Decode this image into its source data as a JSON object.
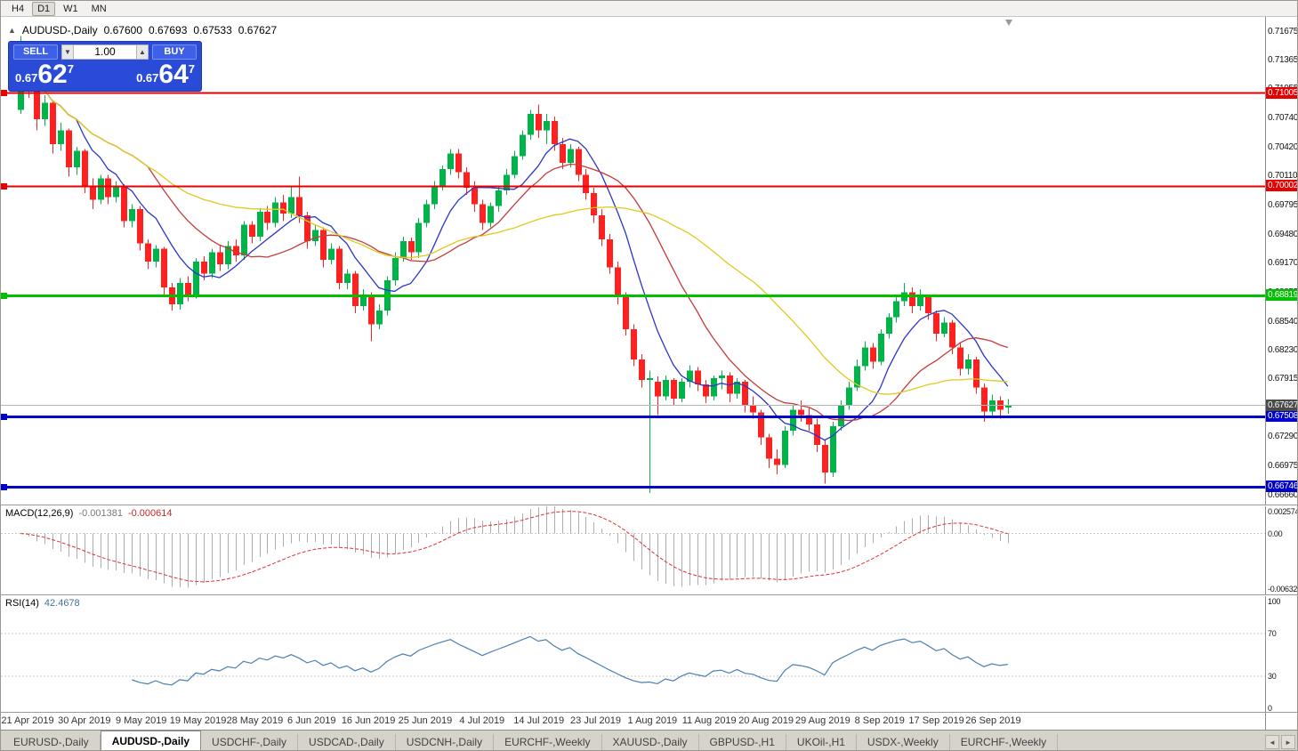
{
  "toolbar": {
    "timeframes": [
      {
        "label": "H4",
        "active": false
      },
      {
        "label": "D1",
        "active": true
      },
      {
        "label": "W1",
        "active": false
      },
      {
        "label": "MN",
        "active": false
      }
    ]
  },
  "chart_header": {
    "collapse_icon": "▲",
    "symbol": "AUDUSD-,Daily",
    "open": "0.67600",
    "high": "0.67693",
    "low": "0.67533",
    "close": "0.67627"
  },
  "trade_panel": {
    "sell_label": "SELL",
    "buy_label": "BUY",
    "volume": "1.00",
    "spin_down_icon": "▼",
    "spin_up_icon": "▲",
    "sell_price": {
      "prefix": "0.67",
      "big": "62",
      "sup": "7"
    },
    "buy_price": {
      "prefix": "0.67",
      "big": "64",
      "sup": "7"
    }
  },
  "price_axis": {
    "ticks": [
      "0.71675",
      "0.71365",
      "0.71055",
      "0.70740",
      "0.70420",
      "0.70110",
      "0.69795",
      "0.69480",
      "0.69170",
      "0.68855",
      "0.68540",
      "0.68230",
      "0.67915",
      "0.67600",
      "0.67290",
      "0.66975",
      "0.66660"
    ]
  },
  "levels": [
    {
      "price": 0.71005,
      "label": "0.71005",
      "color": "#e60000",
      "thickness": 2
    },
    {
      "price": 0.70002,
      "label": "0.70002",
      "color": "#e60000",
      "thickness": 2
    },
    {
      "price": 0.68819,
      "label": "0.68819",
      "color": "#00c000",
      "thickness": 3
    },
    {
      "price": 0.67508,
      "label": "0.67508",
      "color": "#0000cc",
      "thickness": 3
    },
    {
      "price": 0.66746,
      "label": "0.66746",
      "color": "#0000cc",
      "thickness": 3
    }
  ],
  "current_price": {
    "value": 0.67627,
    "label": "0.67627",
    "line_color": "#b5b5b5",
    "label_bg": "#4a4a4a"
  },
  "chart_data": {
    "type": "candlestick",
    "symbol": "AUDUSD",
    "timeframe": "Daily",
    "y_axis": {
      "top": 0.7175,
      "bottom": 0.6663
    },
    "bull_color": "#00b44a",
    "bear_color": "#ff2020",
    "x_labels": [
      "21 Apr 2019",
      "30 Apr 2019",
      "9 May 2019",
      "19 May 2019",
      "28 May 2019",
      "6 Jun 2019",
      "16 Jun 2019",
      "25 Jun 2019",
      "4 Jul 2019",
      "14 Jul 2019",
      "23 Jul 2019",
      "1 Aug 2019",
      "11 Aug 2019",
      "20 Aug 2019",
      "29 Aug 2019",
      "8 Sep 2019",
      "17 Sep 2019",
      "26 Sep 2019"
    ],
    "moving_averages": [
      {
        "period": 8,
        "color": "#2b35c8"
      },
      {
        "period": 17,
        "color": "#c43b3b"
      },
      {
        "period": 34,
        "color": "#ddca1d"
      }
    ],
    "candles": [
      [
        0.7082,
        0.7162,
        0.7078,
        0.7148
      ],
      [
        0.7148,
        0.7152,
        0.7095,
        0.7105
      ],
      [
        0.7105,
        0.711,
        0.706,
        0.7072
      ],
      [
        0.7072,
        0.7098,
        0.7065,
        0.709
      ],
      [
        0.709,
        0.7092,
        0.7035,
        0.7045
      ],
      [
        0.7045,
        0.7068,
        0.7038,
        0.706
      ],
      [
        0.706,
        0.7062,
        0.701,
        0.702
      ],
      [
        0.702,
        0.7042,
        0.7012,
        0.7038
      ],
      [
        0.7038,
        0.704,
        0.6992,
        0.7
      ],
      [
        0.7,
        0.7008,
        0.6975,
        0.6985
      ],
      [
        0.6985,
        0.7012,
        0.698,
        0.7008
      ],
      [
        0.7008,
        0.7012,
        0.698,
        0.6988
      ],
      [
        0.6988,
        0.7005,
        0.6982,
        0.7
      ],
      [
        0.7,
        0.7002,
        0.6955,
        0.6962
      ],
      [
        0.6962,
        0.698,
        0.6955,
        0.6975
      ],
      [
        0.6975,
        0.6978,
        0.693,
        0.6938
      ],
      [
        0.6938,
        0.6942,
        0.691,
        0.6918
      ],
      [
        0.6918,
        0.6936,
        0.6912,
        0.6932
      ],
      [
        0.6932,
        0.6934,
        0.6882,
        0.689
      ],
      [
        0.689,
        0.6895,
        0.6865,
        0.6872
      ],
      [
        0.6872,
        0.69,
        0.6866,
        0.6895
      ],
      [
        0.6895,
        0.6902,
        0.6875,
        0.6882
      ],
      [
        0.6882,
        0.6922,
        0.6878,
        0.6918
      ],
      [
        0.6918,
        0.6924,
        0.6898,
        0.6905
      ],
      [
        0.6905,
        0.6932,
        0.69,
        0.6928
      ],
      [
        0.6928,
        0.6935,
        0.6908,
        0.6915
      ],
      [
        0.6915,
        0.694,
        0.691,
        0.6935
      ],
      [
        0.6935,
        0.6942,
        0.6918,
        0.6925
      ],
      [
        0.6925,
        0.6962,
        0.692,
        0.6958
      ],
      [
        0.6958,
        0.6962,
        0.6938,
        0.6945
      ],
      [
        0.6945,
        0.6976,
        0.694,
        0.6972
      ],
      [
        0.6972,
        0.6978,
        0.6952,
        0.696
      ],
      [
        0.696,
        0.6988,
        0.6955,
        0.6982
      ],
      [
        0.6982,
        0.699,
        0.6962,
        0.697
      ],
      [
        0.697,
        0.7,
        0.6965,
        0.6988
      ],
      [
        0.6988,
        0.701,
        0.696,
        0.6968
      ],
      [
        0.6968,
        0.6972,
        0.6932,
        0.694
      ],
      [
        0.694,
        0.6958,
        0.6935,
        0.6952
      ],
      [
        0.6952,
        0.6955,
        0.6912,
        0.692
      ],
      [
        0.692,
        0.6938,
        0.6915,
        0.6932
      ],
      [
        0.6932,
        0.6935,
        0.6888,
        0.6895
      ],
      [
        0.6895,
        0.691,
        0.6888,
        0.6905
      ],
      [
        0.6905,
        0.6908,
        0.6862,
        0.687
      ],
      [
        0.687,
        0.6888,
        0.6865,
        0.6882
      ],
      [
        0.6882,
        0.6885,
        0.6832,
        0.685
      ],
      [
        0.685,
        0.6872,
        0.6845,
        0.6865
      ],
      [
        0.6865,
        0.6902,
        0.686,
        0.6898
      ],
      [
        0.6898,
        0.6928,
        0.6892,
        0.6922
      ],
      [
        0.6922,
        0.6945,
        0.6918,
        0.694
      ],
      [
        0.694,
        0.6944,
        0.692,
        0.6928
      ],
      [
        0.6928,
        0.6965,
        0.6922,
        0.696
      ],
      [
        0.696,
        0.6985,
        0.6955,
        0.698
      ],
      [
        0.698,
        0.7005,
        0.6975,
        0.7
      ],
      [
        0.7,
        0.7022,
        0.6995,
        0.7018
      ],
      [
        0.7018,
        0.704,
        0.7012,
        0.7035
      ],
      [
        0.7035,
        0.704,
        0.7008,
        0.7015
      ],
      [
        0.7015,
        0.702,
        0.699,
        0.6998
      ],
      [
        0.6998,
        0.7005,
        0.6972,
        0.698
      ],
      [
        0.698,
        0.6985,
        0.6952,
        0.696
      ],
      [
        0.696,
        0.6982,
        0.6955,
        0.6978
      ],
      [
        0.6978,
        0.7,
        0.6972,
        0.6995
      ],
      [
        0.6995,
        0.7018,
        0.699,
        0.7012
      ],
      [
        0.7012,
        0.7038,
        0.7008,
        0.7032
      ],
      [
        0.7032,
        0.706,
        0.7028,
        0.7055
      ],
      [
        0.7055,
        0.7082,
        0.705,
        0.7078
      ],
      [
        0.7078,
        0.7088,
        0.7052,
        0.706
      ],
      [
        0.706,
        0.7078,
        0.7045,
        0.707
      ],
      [
        0.707,
        0.7075,
        0.7038,
        0.7045
      ],
      [
        0.7045,
        0.7052,
        0.7018,
        0.7025
      ],
      [
        0.7025,
        0.7045,
        0.702,
        0.704
      ],
      [
        0.704,
        0.7042,
        0.7005,
        0.7012
      ],
      [
        0.7012,
        0.7018,
        0.6985,
        0.6992
      ],
      [
        0.6992,
        0.6998,
        0.696,
        0.6968
      ],
      [
        0.6968,
        0.6975,
        0.6935,
        0.6942
      ],
      [
        0.6942,
        0.6948,
        0.6905,
        0.6912
      ],
      [
        0.6912,
        0.6918,
        0.6872,
        0.688
      ],
      [
        0.688,
        0.6885,
        0.6838,
        0.6845
      ],
      [
        0.6845,
        0.685,
        0.6805,
        0.6812
      ],
      [
        0.6812,
        0.6818,
        0.6782,
        0.679
      ],
      [
        0.679,
        0.68,
        0.6668,
        0.6792
      ],
      [
        0.6788,
        0.6794,
        0.6752,
        0.6772
      ],
      [
        0.6772,
        0.6795,
        0.6768,
        0.679
      ],
      [
        0.679,
        0.6792,
        0.6762,
        0.677
      ],
      [
        0.677,
        0.6792,
        0.6766,
        0.6788
      ],
      [
        0.6788,
        0.6806,
        0.6782,
        0.68
      ],
      [
        0.68,
        0.6804,
        0.6778,
        0.6785
      ],
      [
        0.6785,
        0.679,
        0.6765,
        0.6772
      ],
      [
        0.6772,
        0.6795,
        0.6768,
        0.6792
      ],
      [
        0.6792,
        0.68,
        0.678,
        0.6795
      ],
      [
        0.6795,
        0.6798,
        0.6766,
        0.6775
      ],
      [
        0.6775,
        0.6792,
        0.677,
        0.6788
      ],
      [
        0.6788,
        0.679,
        0.6755,
        0.6762
      ],
      [
        0.6762,
        0.6772,
        0.6748,
        0.6755
      ],
      [
        0.6755,
        0.6758,
        0.672,
        0.6728
      ],
      [
        0.6728,
        0.6732,
        0.6695,
        0.6705
      ],
      [
        0.6705,
        0.6715,
        0.6688,
        0.6698
      ],
      [
        0.6698,
        0.674,
        0.6695,
        0.6735
      ],
      [
        0.6735,
        0.6762,
        0.673,
        0.6758
      ],
      [
        0.6758,
        0.6768,
        0.6745,
        0.6752
      ],
      [
        0.6752,
        0.676,
        0.6735,
        0.6742
      ],
      [
        0.6742,
        0.6748,
        0.6712,
        0.672
      ],
      [
        0.672,
        0.6725,
        0.6678,
        0.669
      ],
      [
        0.669,
        0.6745,
        0.6685,
        0.674
      ],
      [
        0.674,
        0.6768,
        0.6735,
        0.6762
      ],
      [
        0.6762,
        0.6788,
        0.6758,
        0.6782
      ],
      [
        0.6782,
        0.6812,
        0.6778,
        0.6805
      ],
      [
        0.6805,
        0.6832,
        0.68,
        0.6825
      ],
      [
        0.6825,
        0.683,
        0.6802,
        0.681
      ],
      [
        0.681,
        0.6845,
        0.6806,
        0.684
      ],
      [
        0.684,
        0.6862,
        0.6835,
        0.6858
      ],
      [
        0.6858,
        0.6882,
        0.6852,
        0.6875
      ],
      [
        0.6875,
        0.6895,
        0.687,
        0.6885
      ],
      [
        0.6885,
        0.689,
        0.6862,
        0.687
      ],
      [
        0.687,
        0.6888,
        0.6865,
        0.688
      ],
      [
        0.688,
        0.6882,
        0.6855,
        0.6862
      ],
      [
        0.6862,
        0.6865,
        0.6832,
        0.684
      ],
      [
        0.684,
        0.6858,
        0.6836,
        0.6852
      ],
      [
        0.6852,
        0.6855,
        0.6818,
        0.6825
      ],
      [
        0.6825,
        0.683,
        0.6795,
        0.6802
      ],
      [
        0.6802,
        0.6818,
        0.6796,
        0.6812
      ],
      [
        0.6812,
        0.6815,
        0.6775,
        0.6782
      ],
      [
        0.6782,
        0.6786,
        0.6745,
        0.6756
      ],
      [
        0.6756,
        0.6774,
        0.675,
        0.6768
      ],
      [
        0.6768,
        0.6772,
        0.6748,
        0.6758
      ],
      [
        0.676,
        0.67693,
        0.67533,
        0.67627
      ]
    ],
    "indicators": [
      {
        "type": "macd",
        "name": "MACD(12,26,9)",
        "params": [
          12,
          26,
          9
        ],
        "value": "-0.001381",
        "signal_value": "-0.000614",
        "axis_max": 0.002574,
        "axis_min": -0.006326,
        "axis_labels": [
          "0.002574",
          "0.00",
          "-0.006326"
        ],
        "histogram_color": "#adadad",
        "signal_color": "#e03030"
      },
      {
        "type": "rsi",
        "name": "RSI(14)",
        "period": 14,
        "value": "42.4678",
        "axis_labels": [
          "100",
          "70",
          "30",
          "0"
        ],
        "levels": [
          70,
          30
        ],
        "line_color": "#4a7fb5"
      }
    ]
  },
  "tabs": [
    {
      "label": "EURUSD-,Daily",
      "active": false
    },
    {
      "label": "AUDUSD-,Daily",
      "active": true
    },
    {
      "label": "USDCHF-,Daily",
      "active": false
    },
    {
      "label": "USDCAD-,Daily",
      "active": false
    },
    {
      "label": "USDCNH-,Daily",
      "active": false
    },
    {
      "label": "EURCHF-,Weekly",
      "active": false
    },
    {
      "label": "XAUUSD-,Daily",
      "active": false
    },
    {
      "label": "GBPUSD-,H1",
      "active": false
    },
    {
      "label": "UKOil-,H1",
      "active": false
    },
    {
      "label": "USDX-,Weekly",
      "active": false
    },
    {
      "label": "EURCHF-,Weekly",
      "active": false
    }
  ],
  "tab_scroll": {
    "left_icon": "◄",
    "right_icon": "►"
  }
}
